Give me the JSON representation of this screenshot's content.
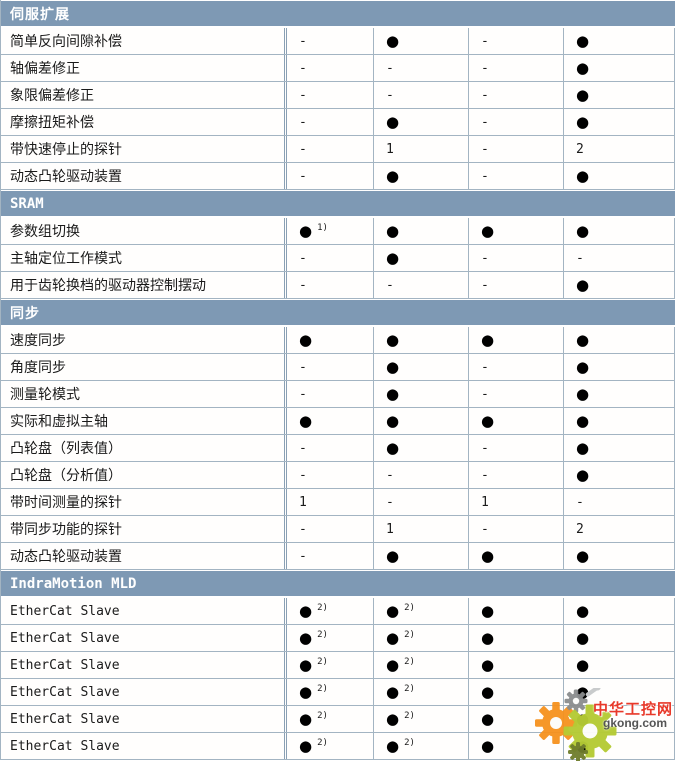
{
  "table": {
    "colors": {
      "header_bg": "#7E99B4",
      "header_text": "#FFFFFF",
      "border": "#A3B4C2",
      "border_strong": "#8AA0B4",
      "label_text": "#1A1A1A",
      "bullet": "#000000"
    },
    "legend_note": "cells: ● = available, - = not available, numbers = quantity, ^ marks superscript footnote",
    "sections": [
      {
        "label": "伺服扩展",
        "rows": [
          {
            "label": "简单反向间隙补偿",
            "cells": [
              "-",
              "●",
              "-",
              "●"
            ]
          },
          {
            "label": "轴偏差修正",
            "cells": [
              "-",
              "-",
              "-",
              "●"
            ]
          },
          {
            "label": "象限偏差修正",
            "cells": [
              "-",
              "-",
              "-",
              "●"
            ]
          },
          {
            "label": "摩擦扭矩补偿",
            "cells": [
              "-",
              "●",
              "-",
              "●"
            ]
          },
          {
            "label": "带快速停止的探针",
            "cells": [
              "-",
              "1",
              "-",
              "2"
            ]
          },
          {
            "label": "动态凸轮驱动装置",
            "cells": [
              "-",
              "●",
              "-",
              "●"
            ]
          }
        ]
      },
      {
        "label": "SRAM",
        "rows": [
          {
            "label": "参数组切换",
            "cells": [
              "● ^1)",
              "●",
              "●",
              "●"
            ]
          },
          {
            "label": "主轴定位工作模式",
            "cells": [
              "-",
              "●",
              "-",
              "-"
            ]
          },
          {
            "label": "用于齿轮换档的驱动器控制摆动",
            "cells": [
              "-",
              "-",
              "-",
              "●"
            ]
          }
        ]
      },
      {
        "label": "同步",
        "rows": [
          {
            "label": "速度同步",
            "cells": [
              "●",
              "●",
              "●",
              "●"
            ]
          },
          {
            "label": "角度同步",
            "cells": [
              "-",
              "●",
              "-",
              "●"
            ]
          },
          {
            "label": "测量轮模式",
            "cells": [
              "-",
              "●",
              "-",
              "●"
            ]
          },
          {
            "label": "实际和虚拟主轴",
            "cells": [
              "●",
              "●",
              "●",
              "●"
            ]
          },
          {
            "label": "凸轮盘（列表值）",
            "cells": [
              "-",
              "●",
              "-",
              "●"
            ]
          },
          {
            "label": "凸轮盘（分析值）",
            "cells": [
              "-",
              "-",
              "-",
              "●"
            ]
          },
          {
            "label": "带时间测量的探针",
            "cells": [
              "1",
              "-",
              "1",
              "-"
            ]
          },
          {
            "label": "带同步功能的探针",
            "cells": [
              "-",
              "1",
              "-",
              "2"
            ]
          },
          {
            "label": "动态凸轮驱动装置",
            "cells": [
              "-",
              "●",
              "●",
              "●"
            ]
          }
        ]
      },
      {
        "label": "IndraMotion MLD",
        "rows": [
          {
            "label": "EtherCat Slave",
            "cells": [
              "● ^2)",
              "● ^2)",
              "●",
              "●"
            ]
          },
          {
            "label": "EtherCat Slave",
            "cells": [
              "● ^2)",
              "● ^2)",
              "●",
              "●"
            ]
          },
          {
            "label": "EtherCat Slave",
            "cells": [
              "● ^2)",
              "● ^2)",
              "●",
              "●"
            ]
          },
          {
            "label": "EtherCat Slave",
            "cells": [
              "● ^2)",
              "● ^2)",
              "●",
              "●"
            ]
          },
          {
            "label": "EtherCat Slave",
            "cells": [
              "● ^2)",
              "● ^2)",
              "●",
              "●"
            ]
          },
          {
            "label": "EtherCat Slave",
            "cells": [
              "● ^2)",
              "● ^2)",
              "●",
              "●"
            ]
          }
        ]
      }
    ]
  },
  "watermark": {
    "site_name": "中华工控网",
    "site_url": "gkong.com",
    "colors": {
      "orange_gear": "#F6921E",
      "green_gear": "#B5CB35",
      "gray_gear": "#8B8D8E",
      "olive_gear": "#6F7D2C",
      "red_text": "#E8392A",
      "gray_text": "#555555"
    }
  }
}
